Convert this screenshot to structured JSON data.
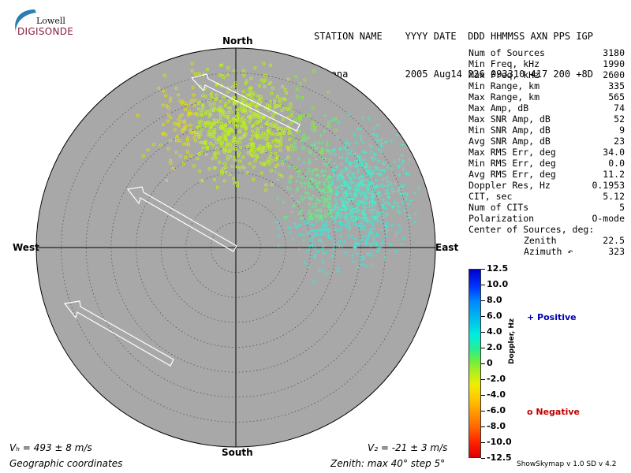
{
  "logo": {
    "line1": "Lowell",
    "line2": "DIGISONDE"
  },
  "header": {
    "line1": "STATION NAME    YYYY DATE  DDD HHMMSS AXN PPS IGP",
    "line2": "Gakona          2005 Aug14 226 093310 417 200 +8D"
  },
  "directions": {
    "north": "North",
    "south": "South",
    "east": "East",
    "west": "West"
  },
  "stats": [
    {
      "label": "Num of Sources",
      "value": "3180"
    },
    {
      "label": "Min Freq, kHz",
      "value": "1990"
    },
    {
      "label": "Max Freq, kHz",
      "value": "2600"
    },
    {
      "label": "Min Range, km",
      "value": "335"
    },
    {
      "label": "Max Range, km",
      "value": "565"
    },
    {
      "label": "Max Amp, dB",
      "value": "74"
    },
    {
      "label": "Max SNR Amp, dB",
      "value": "52"
    },
    {
      "label": "Min SNR Amp, dB",
      "value": "9"
    },
    {
      "label": "Avg SNR Amp, dB",
      "value": "23"
    },
    {
      "label": "Max RMS Err, deg",
      "value": "34.0"
    },
    {
      "label": "Min RMS Err, deg",
      "value": "0.0"
    },
    {
      "label": "Avg RMS Err, deg",
      "value": "11.2"
    },
    {
      "label": "Doppler Res, Hz",
      "value": "0.1953"
    },
    {
      "label": "CIT, sec",
      "value": "5.12"
    },
    {
      "label": "Num of CITs",
      "value": "5"
    },
    {
      "label": "Polarization",
      "value": "O-mode"
    },
    {
      "label": "Center of Sources, deg:",
      "value": ""
    },
    {
      "label": "Zenith",
      "value": "22.5",
      "indent": true
    },
    {
      "label": "Azimuth ↶",
      "value": "323",
      "indent": true
    }
  ],
  "colorbar": {
    "title": "Doppler, Hz",
    "ticks": [
      "12.5",
      "10.0",
      "8.0",
      "6.0",
      "4.0",
      "2.0",
      "0",
      "-2.0",
      "-4.0",
      "-6.0",
      "-8.0",
      "-10.0",
      "-12.5"
    ],
    "colors": {
      "top": "#0000cc",
      "bottom": "#dd0000"
    }
  },
  "legend": {
    "positive": "+ Positive",
    "negative": "o Negative",
    "positive_color": "#0000b0",
    "negative_color": "#c00000"
  },
  "bottom": {
    "vh": "Vₕ = 493 ± 8 m/s",
    "vz": "V₂ = -21 ± 3 m/s",
    "coords": "Geographic coordinates",
    "zenith": "Zenith: max 40°  step 5°",
    "version": "ShowSkymap v 1.0   SD v 4.2"
  },
  "plot_style": {
    "disk_color": "#a8a8a8"
  }
}
